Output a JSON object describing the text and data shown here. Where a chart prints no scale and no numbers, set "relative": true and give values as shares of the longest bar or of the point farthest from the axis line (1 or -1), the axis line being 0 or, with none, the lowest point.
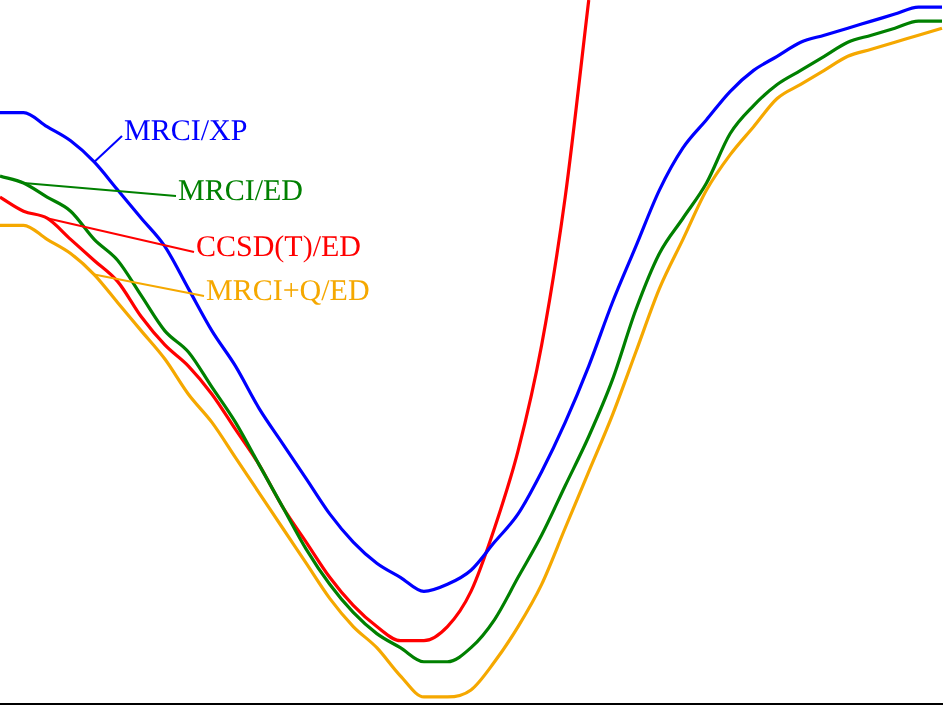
{
  "chart_data": {
    "type": "line",
    "relative": true,
    "legend": "top left",
    "grid": false,
    "marker": "none",
    "line_style": "solid",
    "categories": [
      null,
      null,
      null,
      null,
      null,
      null,
      null,
      null,
      null,
      null,
      null,
      null,
      null,
      null,
      null,
      null,
      null,
      null,
      null,
      null,
      null,
      null,
      null,
      null,
      null,
      null,
      null,
      null,
      null,
      null,
      null,
      null,
      null,
      null,
      null,
      null,
      null,
      null,
      null,
      null,
      null
    ],
    "series": [
      {
        "name": "MRCI/XP",
        "color": "#0000ff",
        "values": [
          0.84,
          0.84,
          0.82,
          0.8,
          0.77,
          0.73,
          0.69,
          0.65,
          0.59,
          0.53,
          0.48,
          0.42,
          0.37,
          0.32,
          0.27,
          0.23,
          0.2,
          0.18,
          0.16,
          0.17,
          0.19,
          0.23,
          0.27,
          0.33,
          0.4,
          0.48,
          0.57,
          0.65,
          0.73,
          0.79,
          0.83,
          0.87,
          0.9,
          0.92,
          0.94,
          0.95,
          0.96,
          0.97,
          0.98,
          0.99,
          0.99
        ]
      },
      {
        "name": "MRCI/ED",
        "color": "#008000",
        "values": [
          0.75,
          0.74,
          0.72,
          0.7,
          0.66,
          0.63,
          0.58,
          0.53,
          0.5,
          0.45,
          0.4,
          0.34,
          0.28,
          0.22,
          0.17,
          0.13,
          0.1,
          0.08,
          0.06,
          0.06,
          0.08,
          0.12,
          0.18,
          0.24,
          0.31,
          0.38,
          0.46,
          0.56,
          0.64,
          0.69,
          0.74,
          0.81,
          0.85,
          0.88,
          0.9,
          0.92,
          0.94,
          0.95,
          0.96,
          0.97,
          0.97
        ]
      },
      {
        "name": "CCSD(T)/ED",
        "color": "#ff0000",
        "values": [
          0.72,
          0.7,
          0.69,
          0.66,
          0.63,
          0.6,
          0.55,
          0.51,
          0.48,
          0.44,
          0.39,
          0.34,
          0.28,
          0.23,
          0.18,
          0.14,
          0.11,
          0.09,
          0.09,
          0.11,
          0.16,
          0.25,
          0.36,
          0.51,
          0.72,
          1,
          null,
          null,
          null,
          null,
          null,
          null,
          null,
          null,
          null,
          null,
          null,
          null,
          null,
          null,
          null
        ]
      },
      {
        "name": "MRCI+Q/ED",
        "color": "#f5a800",
        "values": [
          0.68,
          0.68,
          0.66,
          0.64,
          0.61,
          0.57,
          0.53,
          0.49,
          0.44,
          0.4,
          0.35,
          0.3,
          0.25,
          0.2,
          0.15,
          0.11,
          0.08,
          0.04,
          0.01,
          0.01,
          0.02,
          0.06,
          0.11,
          0.17,
          0.25,
          0.33,
          0.41,
          0.5,
          0.59,
          0.66,
          0.73,
          0.78,
          0.82,
          0.86,
          0.88,
          0.9,
          0.92,
          0.93,
          0.94,
          0.95,
          0.96
        ]
      }
    ]
  }
}
